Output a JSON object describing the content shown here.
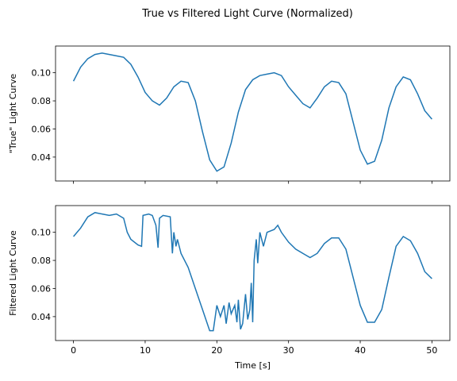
{
  "title": "True vs Filtered Light Curve (Normalized)",
  "chart_data": [
    {
      "type": "line",
      "ylabel": "\"True\" Light Curve",
      "xlim": [
        -2.5,
        52.5
      ],
      "xticks": [
        0,
        10,
        20,
        30,
        40,
        50
      ],
      "ylim": [
        0.023,
        0.119
      ],
      "yticks": [
        0.04,
        0.06,
        0.08,
        {
          "value": 0.1,
          "label": "0.10"
        }
      ],
      "series": [
        {
          "color": "#1f77b4",
          "x": [
            0,
            1,
            2,
            3,
            4,
            5,
            6,
            7,
            8,
            9,
            10,
            11,
            12,
            13,
            14,
            15,
            16,
            17,
            18,
            19,
            20,
            21,
            22,
            23,
            24,
            25,
            26,
            27,
            28,
            29,
            30,
            31,
            32,
            33,
            34,
            35,
            36,
            37,
            38,
            39,
            40,
            41,
            42,
            43,
            44,
            45,
            46,
            47,
            48,
            49,
            50
          ],
          "values": [
            0.094,
            0.104,
            0.11,
            0.113,
            0.114,
            0.113,
            0.112,
            0.111,
            0.106,
            0.097,
            0.086,
            0.08,
            0.077,
            0.082,
            0.09,
            0.094,
            0.093,
            0.08,
            0.058,
            0.038,
            0.03,
            0.033,
            0.05,
            0.072,
            0.088,
            0.095,
            0.098,
            0.099,
            0.1,
            0.098,
            0.09,
            0.084,
            0.078,
            0.075,
            0.082,
            0.09,
            0.094,
            0.093,
            0.085,
            0.065,
            0.045,
            0.035,
            0.037,
            0.052,
            0.075,
            0.09,
            0.097,
            0.095,
            0.085,
            0.073,
            0.067
          ]
        }
      ]
    },
    {
      "type": "line",
      "ylabel": "Filtered Light Curve",
      "xlabel": "Time [s]",
      "xlim": [
        -2.5,
        52.5
      ],
      "xticks": [
        0,
        10,
        20,
        30,
        40,
        50
      ],
      "ylim": [
        0.023,
        0.119
      ],
      "yticks": [
        0.04,
        0.06,
        0.08,
        {
          "value": 0.1,
          "label": "0.10"
        }
      ],
      "series": [
        {
          "color": "#1f77b4",
          "x": [
            0,
            1,
            2,
            3,
            4,
            5,
            6,
            7,
            7.5,
            8,
            9,
            9.5,
            9.7,
            10.5,
            11,
            11.5,
            11.8,
            12,
            12.5,
            13.5,
            13.8,
            14,
            14.3,
            14.5,
            15,
            16,
            17,
            18,
            19,
            19.5,
            20,
            20.5,
            21,
            21.3,
            21.7,
            22,
            22.5,
            22.8,
            23,
            23.3,
            23.6,
            24,
            24.3,
            24.6,
            24.8,
            25,
            25.2,
            25.5,
            25.7,
            26,
            26.5,
            27,
            28,
            28.5,
            29,
            30,
            31,
            32,
            33,
            34,
            35,
            36,
            37,
            38,
            39,
            40,
            41,
            42,
            43,
            44,
            45,
            46,
            47,
            48,
            49,
            50
          ],
          "values": [
            0.097,
            0.103,
            0.111,
            0.114,
            0.113,
            0.112,
            0.113,
            0.11,
            0.1,
            0.095,
            0.091,
            0.09,
            0.112,
            0.113,
            0.112,
            0.105,
            0.089,
            0.11,
            0.112,
            0.111,
            0.085,
            0.1,
            0.09,
            0.095,
            0.085,
            0.075,
            0.06,
            0.045,
            0.03,
            0.03,
            0.048,
            0.04,
            0.048,
            0.035,
            0.05,
            0.042,
            0.048,
            0.036,
            0.052,
            0.031,
            0.035,
            0.056,
            0.038,
            0.045,
            0.064,
            0.036,
            0.08,
            0.095,
            0.078,
            0.1,
            0.09,
            0.1,
            0.102,
            0.105,
            0.1,
            0.093,
            0.088,
            0.085,
            0.082,
            0.085,
            0.092,
            0.096,
            0.096,
            0.088,
            0.068,
            0.048,
            0.036,
            0.036,
            0.045,
            0.068,
            0.09,
            0.097,
            0.094,
            0.085,
            0.072,
            0.067
          ]
        }
      ]
    }
  ]
}
